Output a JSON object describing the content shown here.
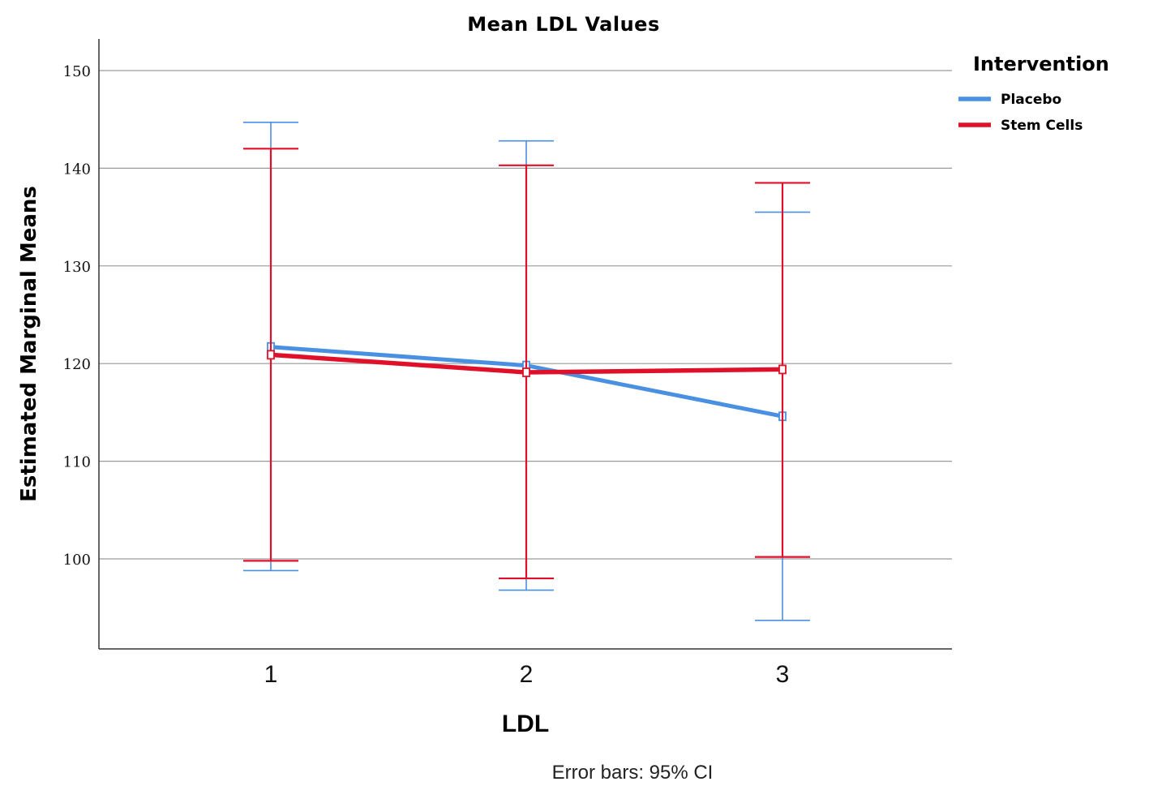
{
  "chart_data": {
    "type": "line",
    "title": "Mean LDL Values",
    "xlabel": "LDL",
    "ylabel": "Estimated Marginal Means",
    "categories": [
      "1",
      "2",
      "3"
    ],
    "ylim": [
      91,
      153
    ],
    "yticks": [
      100,
      110,
      120,
      130,
      140,
      150
    ],
    "grid": true,
    "legend_title": "Intervention",
    "legend_position": "top-right",
    "footnote": "Error bars: 95% CI",
    "series": [
      {
        "name": "Placebo",
        "color": "#4a90e2",
        "values": [
          121.7,
          119.8,
          114.6
        ],
        "ci_lower": [
          98.8,
          96.8,
          93.7
        ],
        "ci_upper": [
          144.7,
          142.8,
          135.5
        ]
      },
      {
        "name": "Stem Cells",
        "color": "#e0102a",
        "values": [
          120.9,
          119.1,
          119.4
        ],
        "ci_lower": [
          99.8,
          98.0,
          100.2
        ],
        "ci_upper": [
          142.0,
          140.3,
          138.5
        ]
      }
    ]
  }
}
